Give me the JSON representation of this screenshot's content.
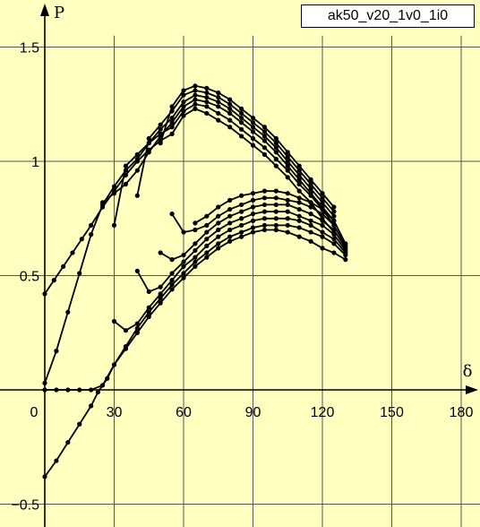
{
  "badge_label": "ak50_v20_1v0_1i0",
  "chart_data": {
    "type": "line",
    "title": "",
    "xlabel": "δ",
    "ylabel": "P",
    "xlim": [
      -10,
      190
    ],
    "ylim": [
      -0.6,
      1.65
    ],
    "xticks": [
      0,
      30,
      60,
      90,
      120,
      150,
      180
    ],
    "yticks": [
      -0.5,
      0.5,
      1,
      1.5
    ],
    "ytick_labels": [
      "−0.5",
      "0.5",
      "1",
      "1.5"
    ],
    "grid": true,
    "markers": "dots",
    "series": [
      {
        "x": [
          0,
          4,
          8,
          12,
          16,
          20,
          25,
          30,
          35,
          40,
          45,
          50,
          55,
          60,
          65,
          70,
          75,
          80,
          85,
          90,
          95,
          100,
          105,
          110,
          115,
          120,
          125
        ],
        "y": [
          0.42,
          0.48,
          0.54,
          0.6,
          0.66,
          0.72,
          0.8,
          0.87,
          0.94,
          1.0,
          1.05,
          1.09,
          1.12,
          1.2,
          1.23,
          1.21,
          1.18,
          1.15,
          1.11,
          1.07,
          1.03,
          0.98,
          0.93,
          0.87,
          0.82,
          0.75,
          0.69
        ]
      },
      {
        "x": [
          0,
          5,
          10,
          15,
          20,
          25,
          30,
          35,
          40,
          45,
          50,
          55,
          60,
          65,
          70,
          75,
          80,
          85,
          90,
          95,
          100,
          105,
          110,
          115,
          120,
          125
        ],
        "y": [
          0.03,
          0.17,
          0.34,
          0.51,
          0.68,
          0.81,
          0.89,
          0.96,
          1.01,
          1.08,
          1.12,
          1.15,
          1.22,
          1.25,
          1.24,
          1.21,
          1.18,
          1.14,
          1.1,
          1.06,
          1.01,
          0.96,
          0.9,
          0.85,
          0.79,
          0.72
        ]
      },
      {
        "x": [
          25,
          30,
          35,
          40,
          45,
          50,
          55,
          60,
          65,
          70,
          75,
          80,
          85,
          90,
          95,
          100,
          105,
          110,
          115,
          120,
          125
        ],
        "y": [
          0.82,
          0.86,
          0.9,
          0.96,
          1.04,
          1.11,
          1.17,
          1.24,
          1.27,
          1.26,
          1.24,
          1.21,
          1.17,
          1.13,
          1.09,
          1.04,
          0.98,
          0.92,
          0.86,
          0.8,
          0.74
        ]
      },
      {
        "x": [
          30,
          35,
          40,
          45,
          50,
          55,
          60,
          65,
          70,
          75,
          80,
          85,
          90,
          95,
          100,
          105,
          110,
          115,
          120,
          125
        ],
        "y": [
          0.72,
          0.98,
          1.03,
          1.08,
          1.14,
          1.19,
          1.26,
          1.29,
          1.28,
          1.26,
          1.23,
          1.19,
          1.15,
          1.11,
          1.06,
          1.0,
          0.94,
          0.88,
          0.82,
          0.76
        ]
      },
      {
        "x": [
          40,
          45,
          50,
          55,
          60,
          65,
          70,
          75,
          80,
          85,
          90,
          95,
          100,
          105,
          110,
          115,
          120,
          125
        ],
        "y": [
          0.85,
          1.1,
          1.16,
          1.22,
          1.29,
          1.31,
          1.3,
          1.28,
          1.25,
          1.21,
          1.17,
          1.13,
          1.08,
          1.02,
          0.96,
          0.9,
          0.84,
          0.78
        ]
      },
      {
        "x": [
          50,
          55,
          60,
          65,
          70,
          75,
          80,
          85,
          90,
          95,
          100,
          105,
          110,
          115,
          120,
          125
        ],
        "y": [
          1.08,
          1.24,
          1.31,
          1.33,
          1.32,
          1.3,
          1.27,
          1.23,
          1.19,
          1.15,
          1.1,
          1.04,
          0.98,
          0.92,
          0.86,
          0.8
        ]
      },
      {
        "x": [
          0,
          5,
          10,
          15,
          20,
          23,
          27,
          30,
          35,
          40,
          45,
          50,
          55,
          60,
          65,
          70,
          75,
          80,
          85,
          90,
          95,
          100,
          105,
          110,
          115,
          120,
          125,
          130
        ],
        "y": [
          -0.38,
          -0.31,
          -0.23,
          -0.15,
          -0.07,
          -0.01,
          0.05,
          0.11,
          0.18,
          0.25,
          0.32,
          0.38,
          0.44,
          0.49,
          0.54,
          0.58,
          0.62,
          0.65,
          0.67,
          0.69,
          0.7,
          0.7,
          0.69,
          0.67,
          0.65,
          0.62,
          0.6,
          0.57
        ]
      },
      {
        "x": [
          0,
          5,
          10,
          15,
          20,
          25,
          30,
          35,
          40,
          45,
          50,
          55,
          60,
          65,
          70,
          75,
          80,
          85,
          90,
          95,
          100,
          105,
          110,
          115,
          120,
          125,
          130
        ],
        "y": [
          0.0,
          0.0,
          0.0,
          0.0,
          0.0,
          0.02,
          0.11,
          0.19,
          0.27,
          0.34,
          0.4,
          0.46,
          0.51,
          0.56,
          0.6,
          0.64,
          0.67,
          0.69,
          0.71,
          0.72,
          0.72,
          0.72,
          0.71,
          0.69,
          0.67,
          0.64,
          0.59
        ]
      },
      {
        "x": [
          30,
          35,
          40,
          45,
          50,
          55,
          60,
          65,
          70,
          75,
          80,
          85,
          90,
          95,
          100,
          105,
          110,
          115,
          120,
          125,
          130
        ],
        "y": [
          0.3,
          0.26,
          0.29,
          0.36,
          0.42,
          0.48,
          0.54,
          0.58,
          0.63,
          0.67,
          0.7,
          0.72,
          0.74,
          0.75,
          0.75,
          0.75,
          0.74,
          0.72,
          0.69,
          0.66,
          0.6
        ]
      },
      {
        "x": [
          40,
          45,
          50,
          55,
          60,
          65,
          70,
          75,
          80,
          85,
          90,
          95,
          100,
          105,
          110,
          115,
          120,
          125,
          130
        ],
        "y": [
          0.52,
          0.43,
          0.45,
          0.51,
          0.56,
          0.61,
          0.66,
          0.7,
          0.73,
          0.75,
          0.77,
          0.78,
          0.78,
          0.78,
          0.76,
          0.74,
          0.72,
          0.68,
          0.61
        ]
      },
      {
        "x": [
          50,
          55,
          60,
          65,
          70,
          75,
          80,
          85,
          90,
          95,
          100,
          105,
          110,
          115,
          120,
          125,
          130
        ],
        "y": [
          0.6,
          0.57,
          0.59,
          0.64,
          0.69,
          0.73,
          0.76,
          0.78,
          0.8,
          0.81,
          0.81,
          0.81,
          0.79,
          0.77,
          0.74,
          0.7,
          0.62
        ]
      },
      {
        "x": [
          55,
          60,
          65,
          70,
          75,
          80,
          85,
          90,
          95,
          100,
          105,
          110,
          115,
          120,
          125,
          130
        ],
        "y": [
          0.77,
          0.69,
          0.7,
          0.72,
          0.76,
          0.79,
          0.81,
          0.83,
          0.84,
          0.84,
          0.83,
          0.82,
          0.8,
          0.77,
          0.72,
          0.63
        ]
      },
      {
        "x": [
          65,
          70,
          75,
          80,
          85,
          90,
          95,
          100,
          105,
          110,
          115,
          120,
          125,
          130
        ],
        "y": [
          0.73,
          0.76,
          0.8,
          0.83,
          0.85,
          0.86,
          0.87,
          0.87,
          0.86,
          0.84,
          0.82,
          0.79,
          0.74,
          0.64
        ]
      }
    ]
  }
}
